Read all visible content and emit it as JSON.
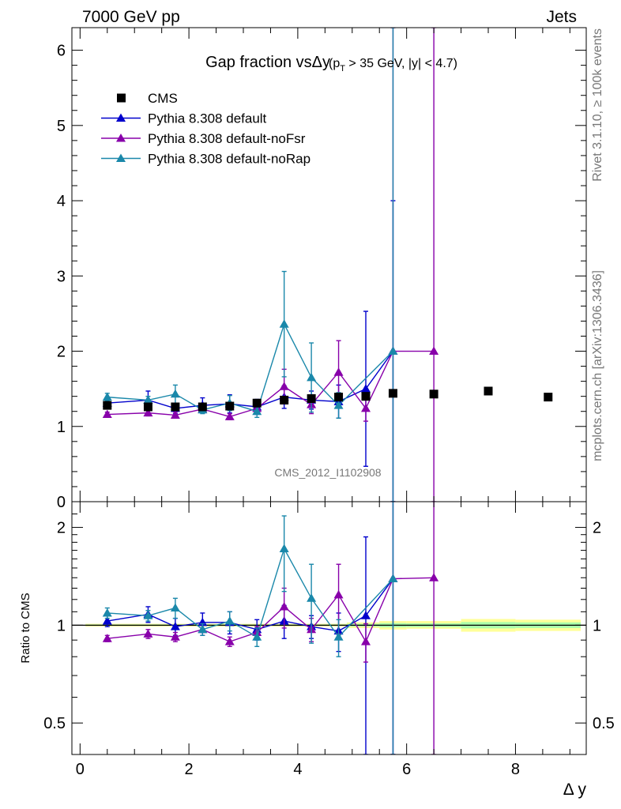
{
  "header": {
    "left": "7000 GeV pp",
    "right": "Jets"
  },
  "side_labels": {
    "rivet": "Rivet 3.1.10, ≥ 100k events",
    "mcplots": "mcplots.cern.ch [arXiv:1306.3436]"
  },
  "chart_data": [
    {
      "type": "scatter",
      "panel": "main",
      "title_main": "Gap fraction vsΔy",
      "title_cut": "(p",
      "title_cut_sub": "T",
      "title_cut_rest": " > 35 GeV, |y| < 4.7)",
      "watermark": "CMS_2012_I1102908",
      "xlim": [
        -0.15,
        9.3
      ],
      "ylim": [
        0,
        6.3
      ],
      "yticks": [
        0,
        1,
        2,
        3,
        4,
        5,
        6
      ],
      "legend_position": "top-left",
      "series": [
        {
          "name": "CMS",
          "color": "#000000",
          "marker": "square",
          "points": [
            {
              "x": 0.5,
              "y": 1.28
            },
            {
              "x": 1.25,
              "y": 1.26
            },
            {
              "x": 1.75,
              "y": 1.26
            },
            {
              "x": 2.25,
              "y": 1.26
            },
            {
              "x": 2.75,
              "y": 1.27
            },
            {
              "x": 3.25,
              "y": 1.31
            },
            {
              "x": 3.75,
              "y": 1.35
            },
            {
              "x": 4.25,
              "y": 1.37
            },
            {
              "x": 4.75,
              "y": 1.39
            },
            {
              "x": 5.25,
              "y": 1.4
            },
            {
              "x": 5.75,
              "y": 1.44
            },
            {
              "x": 6.5,
              "y": 1.43
            },
            {
              "x": 7.5,
              "y": 1.47
            },
            {
              "x": 8.6,
              "y": 1.39
            }
          ]
        },
        {
          "name": "Pythia 8.308 default",
          "color": "#0000cc",
          "marker": "triangle",
          "points": [
            {
              "x": 0.5,
              "y": 1.31,
              "err": 0.05
            },
            {
              "x": 1.25,
              "y": 1.35,
              "err": 0.12
            },
            {
              "x": 1.75,
              "y": 1.24,
              "err": 0.07
            },
            {
              "x": 2.25,
              "y": 1.28,
              "err": 0.1
            },
            {
              "x": 2.75,
              "y": 1.3,
              "err": 0.12
            },
            {
              "x": 3.25,
              "y": 1.26,
              "err": 0.1
            },
            {
              "x": 3.75,
              "y": 1.39,
              "err": 0.15
            },
            {
              "x": 4.25,
              "y": 1.35,
              "err": 0.12
            },
            {
              "x": 4.75,
              "y": 1.33,
              "err": 0.22
            },
            {
              "x": 5.25,
              "y": 1.5,
              "err": 1.03
            },
            {
              "x": 5.75,
              "y": 2.0,
              "err": 2.0
            }
          ]
        },
        {
          "name": "Pythia 8.308 default-noFsr",
          "color": "#8800aa",
          "marker": "triangle",
          "points": [
            {
              "x": 0.5,
              "y": 1.16,
              "err": 0.03
            },
            {
              "x": 1.25,
              "y": 1.18,
              "err": 0.04
            },
            {
              "x": 1.75,
              "y": 1.15,
              "err": 0.04
            },
            {
              "x": 2.25,
              "y": 1.23,
              "err": 0.05
            },
            {
              "x": 2.75,
              "y": 1.13,
              "err": 0.04
            },
            {
              "x": 3.25,
              "y": 1.24,
              "err": 0.06
            },
            {
              "x": 3.75,
              "y": 1.53,
              "err": 0.23
            },
            {
              "x": 4.25,
              "y": 1.29,
              "err": 0.12
            },
            {
              "x": 4.75,
              "y": 1.72,
              "err": 0.42
            },
            {
              "x": 5.25,
              "y": 1.24,
              "err": 0.17
            },
            {
              "x": 5.75,
              "y": 2.0,
              "err": 4.3
            },
            {
              "x": 6.5,
              "y": 2.0,
              "err": 4.3
            }
          ]
        },
        {
          "name": "Pythia 8.308 default-noRap",
          "color": "#1a88aa",
          "marker": "triangle",
          "points": [
            {
              "x": 0.5,
              "y": 1.39,
              "err": 0.05
            },
            {
              "x": 1.25,
              "y": 1.35,
              "err": 0.05
            },
            {
              "x": 1.75,
              "y": 1.43,
              "err": 0.12
            },
            {
              "x": 2.25,
              "y": 1.22,
              "err": 0.05
            },
            {
              "x": 2.75,
              "y": 1.31,
              "err": 0.1
            },
            {
              "x": 3.25,
              "y": 1.2,
              "err": 0.08
            },
            {
              "x": 3.75,
              "y": 2.36,
              "err": 0.7
            },
            {
              "x": 4.25,
              "y": 1.65,
              "err": 0.46
            },
            {
              "x": 4.75,
              "y": 1.28,
              "err": 0.17
            },
            {
              "x": 5.75,
              "y": 2.0,
              "err": 4.3
            }
          ]
        }
      ]
    },
    {
      "type": "scatter",
      "panel": "ratio",
      "ylabel": "Ratio to CMS",
      "yscale": "log",
      "ylim": [
        0.4,
        2.4
      ],
      "yticks": [
        0.5,
        1,
        2
      ],
      "xticks": [
        0,
        2,
        4,
        6,
        8
      ],
      "xlabel": "Δ y",
      "band_color": "#ffff99",
      "band_inner_color": "#aaffaa",
      "reference_line": 1,
      "band_segments": [
        {
          "x0": 0.1,
          "x1": 4.9,
          "lo": 0.99,
          "hi": 1.01
        },
        {
          "x0": 4.9,
          "x1": 5.5,
          "lo": 0.98,
          "hi": 1.02
        },
        {
          "x0": 5.5,
          "x1": 6.0,
          "lo": 0.97,
          "hi": 1.03
        },
        {
          "x0": 6.0,
          "x1": 7.0,
          "lo": 0.975,
          "hi": 1.03
        },
        {
          "x0": 7.0,
          "x1": 8.0,
          "lo": 0.955,
          "hi": 1.045
        },
        {
          "x0": 8.0,
          "x1": 9.2,
          "lo": 0.96,
          "hi": 1.04
        }
      ],
      "series": [
        {
          "name": "Pythia 8.308 default",
          "color": "#0000cc",
          "points": [
            {
              "x": 0.5,
              "y": 1.03,
              "err": 0.04
            },
            {
              "x": 1.25,
              "y": 1.08,
              "err": 0.06
            },
            {
              "x": 1.75,
              "y": 0.99,
              "err": 0.06
            },
            {
              "x": 2.25,
              "y": 1.02,
              "err": 0.07
            },
            {
              "x": 2.75,
              "y": 1.02,
              "err": 0.08
            },
            {
              "x": 3.25,
              "y": 0.97,
              "err": 0.07
            },
            {
              "x": 3.75,
              "y": 1.03,
              "err": 0.12
            },
            {
              "x": 4.25,
              "y": 0.99,
              "err": 0.08
            },
            {
              "x": 4.75,
              "y": 0.96,
              "err": 0.13
            },
            {
              "x": 5.25,
              "y": 1.07,
              "err": 0.8
            },
            {
              "x": 5.75,
              "y": 1.39,
              "err": 1.4
            }
          ]
        },
        {
          "name": "Pythia 8.308 default-noFsr",
          "color": "#8800aa",
          "points": [
            {
              "x": 0.5,
              "y": 0.91,
              "err": 0.02
            },
            {
              "x": 1.25,
              "y": 0.94,
              "err": 0.03
            },
            {
              "x": 1.75,
              "y": 0.92,
              "err": 0.03
            },
            {
              "x": 2.25,
              "y": 0.97,
              "err": 0.04
            },
            {
              "x": 2.75,
              "y": 0.89,
              "err": 0.03
            },
            {
              "x": 3.25,
              "y": 0.95,
              "err": 0.04
            },
            {
              "x": 3.75,
              "y": 1.14,
              "err": 0.16
            },
            {
              "x": 4.25,
              "y": 0.97,
              "err": 0.08
            },
            {
              "x": 4.75,
              "y": 1.24,
              "err": 0.3
            },
            {
              "x": 5.25,
              "y": 0.89,
              "err": 0.12
            },
            {
              "x": 5.75,
              "y": 1.39,
              "err": 3.0
            },
            {
              "x": 6.5,
              "y": 1.4,
              "err": 3.0
            }
          ]
        },
        {
          "name": "Pythia 8.308 default-noRap",
          "color": "#1a88aa",
          "points": [
            {
              "x": 0.5,
              "y": 1.09,
              "err": 0.04
            },
            {
              "x": 1.25,
              "y": 1.07,
              "err": 0.04
            },
            {
              "x": 1.75,
              "y": 1.13,
              "err": 0.08
            },
            {
              "x": 2.25,
              "y": 0.97,
              "err": 0.04
            },
            {
              "x": 2.75,
              "y": 1.03,
              "err": 0.07
            },
            {
              "x": 3.25,
              "y": 0.92,
              "err": 0.06
            },
            {
              "x": 3.75,
              "y": 1.72,
              "err": 0.45
            },
            {
              "x": 4.25,
              "y": 1.21,
              "err": 0.33
            },
            {
              "x": 4.75,
              "y": 0.92,
              "err": 0.12
            },
            {
              "x": 5.75,
              "y": 1.39,
              "err": 3.0
            }
          ]
        }
      ]
    }
  ]
}
